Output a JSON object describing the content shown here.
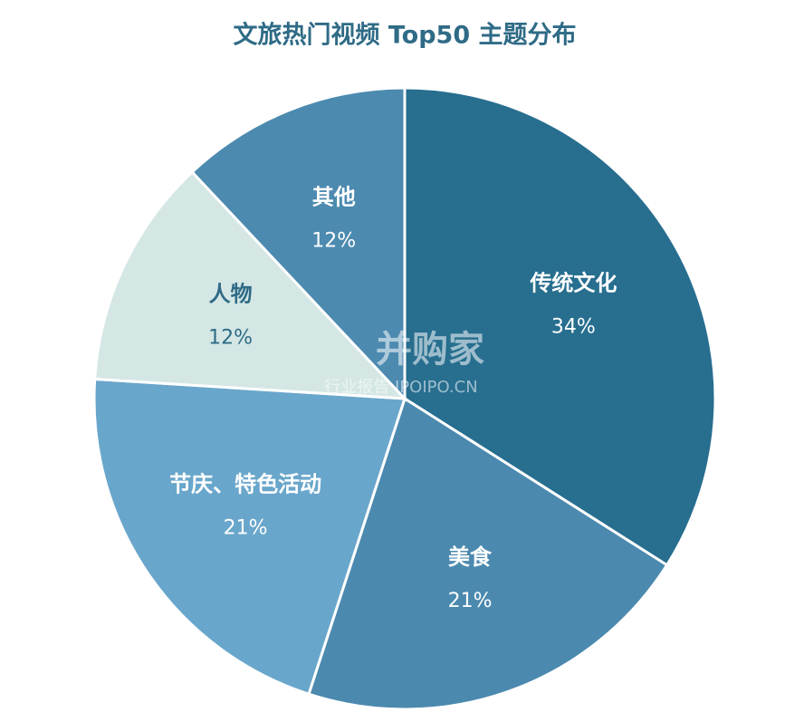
{
  "chart_data": {
    "type": "pie",
    "title": "文旅热门视频 Top50 主题分布",
    "categories": [
      "传统文化",
      "美食",
      "节庆、特色活动",
      "人物",
      "其他"
    ],
    "values": [
      34,
      21,
      21,
      12,
      12
    ],
    "value_labels": [
      "34%",
      "21%",
      "21%",
      "12%",
      "12%"
    ],
    "colors": [
      "#276e8f",
      "#4b89af",
      "#69a6cb",
      "#d4e7e5",
      "#4c8ab0"
    ],
    "watermark": [
      "并购家",
      "行业报告 IPOIPO.CN"
    ]
  }
}
